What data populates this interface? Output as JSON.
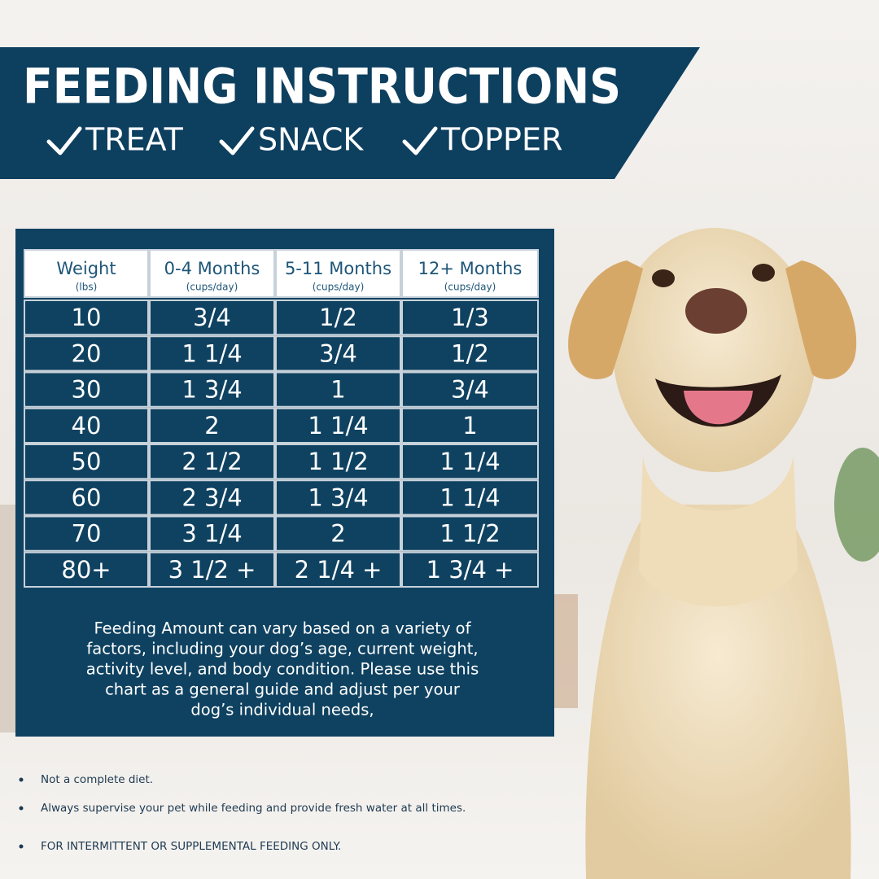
{
  "header": {
    "title": "FEEDING INSTRUCTIONS",
    "tags": [
      "TREAT",
      "SNACK",
      "TOPPER"
    ]
  },
  "table": {
    "columns": [
      {
        "label": "Weight",
        "unit": "(lbs)"
      },
      {
        "label": "0-4 Months",
        "unit": "(cups/day)"
      },
      {
        "label": "5-11 Months",
        "unit": "(cups/day)"
      },
      {
        "label": "12+ Months",
        "unit": "(cups/day)"
      }
    ],
    "rows": [
      [
        "10",
        "3/4",
        "1/2",
        "1/3"
      ],
      [
        "20",
        "1 1/4",
        "3/4",
        "1/2"
      ],
      [
        "30",
        "1 3/4",
        "1",
        "3/4"
      ],
      [
        "40",
        "2",
        "1 1/4",
        "1"
      ],
      [
        "50",
        "2 1/2",
        "1 1/2",
        "1 1/4"
      ],
      [
        "60",
        "2 3/4",
        "1 3/4",
        "1 1/4"
      ],
      [
        "70",
        "3 1/4",
        "2",
        "1 1/2"
      ],
      [
        "80+",
        "3 1/2 +",
        "2 1/4 +",
        "1 3/4 +"
      ]
    ]
  },
  "note": [
    "Feeding Amount can vary based on a variety of",
    "factors, including your dog’s age, current weight,",
    "activity level, and body condition. Please use this",
    "chart as a general guide and adjust per your",
    "dog’s individual needs,"
  ],
  "bullets": [
    "Not a complete diet.",
    "Always supervise your pet while feeding and provide fresh water at all times.",
    "FOR INTERMITTENT OR SUPPLEMENTAL FEEDING ONLY."
  ]
}
